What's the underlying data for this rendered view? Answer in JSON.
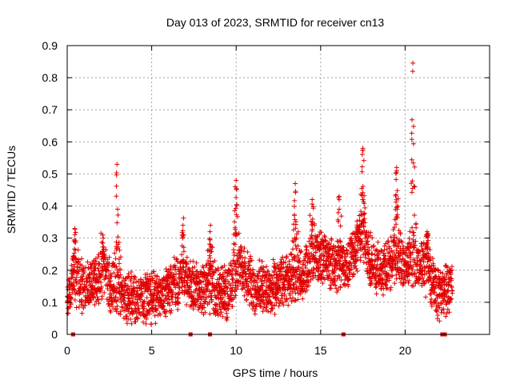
{
  "chart_data": {
    "type": "scatter",
    "title": "Day 013 of 2023, SRMTID for receiver cn13",
    "xlabel": "GPS time / hours",
    "ylabel": "SRMTID / TECUs",
    "xlim": [
      0,
      25
    ],
    "ylim": [
      0,
      0.9
    ],
    "grid": true,
    "x_ticks": [
      0,
      5,
      10,
      15,
      20
    ],
    "x_tick_labels": [
      "0",
      "5",
      "10",
      "15",
      "20"
    ],
    "y_ticks": [
      0,
      0.1,
      0.2,
      0.3,
      0.4,
      0.5,
      0.6,
      0.7,
      0.8,
      0.9
    ],
    "y_tick_labels": [
      "0",
      "0.1",
      "0.2",
      "0.3",
      "0.4",
      "0.5",
      "0.6",
      "0.7",
      "0.8",
      "0.9"
    ],
    "marker_color": "#e00000",
    "baseline_profile": [
      [
        0.0,
        0.13
      ],
      [
        0.5,
        0.17
      ],
      [
        1.0,
        0.14
      ],
      [
        1.5,
        0.16
      ],
      [
        2.0,
        0.19
      ],
      [
        2.5,
        0.16
      ],
      [
        3.0,
        0.13
      ],
      [
        3.5,
        0.12
      ],
      [
        4.0,
        0.11
      ],
      [
        4.5,
        0.11
      ],
      [
        5.0,
        0.11
      ],
      [
        5.5,
        0.12
      ],
      [
        6.0,
        0.14
      ],
      [
        6.5,
        0.16
      ],
      [
        7.0,
        0.17
      ],
      [
        7.5,
        0.15
      ],
      [
        8.0,
        0.14
      ],
      [
        8.5,
        0.15
      ],
      [
        9.0,
        0.13
      ],
      [
        9.5,
        0.13
      ],
      [
        10.0,
        0.19
      ],
      [
        10.5,
        0.2
      ],
      [
        11.0,
        0.15
      ],
      [
        11.5,
        0.15
      ],
      [
        12.0,
        0.14
      ],
      [
        12.5,
        0.15
      ],
      [
        13.0,
        0.17
      ],
      [
        13.5,
        0.18
      ],
      [
        14.0,
        0.19
      ],
      [
        14.5,
        0.23
      ],
      [
        15.0,
        0.25
      ],
      [
        15.5,
        0.22
      ],
      [
        16.0,
        0.2
      ],
      [
        16.5,
        0.22
      ],
      [
        17.0,
        0.27
      ],
      [
        17.5,
        0.3
      ],
      [
        18.0,
        0.22
      ],
      [
        18.5,
        0.2
      ],
      [
        19.0,
        0.22
      ],
      [
        19.5,
        0.24
      ],
      [
        20.0,
        0.22
      ],
      [
        20.5,
        0.2
      ],
      [
        21.0,
        0.22
      ],
      [
        21.5,
        0.18
      ],
      [
        22.0,
        0.12
      ],
      [
        22.5,
        0.14
      ],
      [
        22.8,
        0.15
      ]
    ],
    "peaks": [
      {
        "x": 0.45,
        "y": 0.33
      },
      {
        "x": 2.1,
        "y": 0.31
      },
      {
        "x": 2.95,
        "y": 0.53
      },
      {
        "x": 6.85,
        "y": 0.34
      },
      {
        "x": 8.45,
        "y": 0.32
      },
      {
        "x": 10.0,
        "y": 0.48
      },
      {
        "x": 13.5,
        "y": 0.47
      },
      {
        "x": 14.5,
        "y": 0.42
      },
      {
        "x": 16.1,
        "y": 0.43
      },
      {
        "x": 17.5,
        "y": 0.58
      },
      {
        "x": 19.5,
        "y": 0.52
      },
      {
        "x": 20.45,
        "y": 0.82
      },
      {
        "x": 21.3,
        "y": 0.32
      }
    ],
    "zero_values_x": [
      0.35,
      7.3,
      8.45,
      16.35,
      22.2,
      22.35
    ]
  }
}
